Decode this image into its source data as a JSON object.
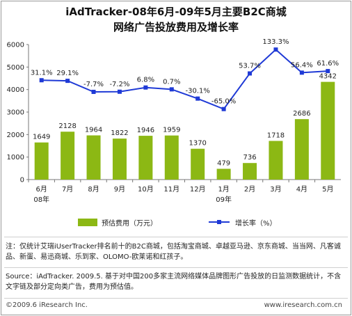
{
  "title_line1": "iAdTracker-08年6月-09年5月主要B2C商城",
  "title_line2": "网络广告投放费用及增长率",
  "note1": "注：仅统计艾瑞iUserTracker排名前十的B2C商城，包括淘宝商城、卓越亚马逊、京东商城、当当网、凡客诚品、新蛋、易迅商城、乐到家、OLOMO-欧莱诺和红孩子。",
  "note2": "Source：iAdTracker. 2009.5. 基于对中国200多家主流网络媒体品牌图形广告投放的日监测数据统计，不含文字链及部分定向类广告，费用为预估值。",
  "footer_left": "©2009.6 iResearch Inc.",
  "footer_right": "www.iresearch.com.cn",
  "chart_data": {
    "type": "bar",
    "categories": [
      "6月",
      "7月",
      "8月",
      "9月",
      "10月",
      "11月",
      "12月",
      "1月",
      "2月",
      "3月",
      "4月",
      "5月"
    ],
    "category_sublabels": [
      "08年",
      "",
      "",
      "",
      "",
      "",
      "",
      "09年",
      "",
      "",
      "",
      ""
    ],
    "series": [
      {
        "name": "预估费用（万元）",
        "kind": "bar",
        "color": "#8cb814",
        "values": [
          1649,
          2128,
          1964,
          1822,
          1946,
          1959,
          1370,
          479,
          736,
          1718,
          2686,
          4342
        ]
      },
      {
        "name": "增长率（%）",
        "kind": "line",
        "color": "#1f3ad6",
        "values": [
          31.1,
          29.1,
          -7.7,
          -7.2,
          6.8,
          0.7,
          -30.1,
          -65.0,
          53.7,
          133.3,
          56.4,
          61.6
        ]
      }
    ],
    "growth_labels": [
      "31.1%",
      "29.1%",
      "-7.7%",
      "-7.2%",
      "6.8%",
      "0.7%",
      "-30.1%",
      "-65.0%",
      "53.7%",
      "133.3%",
      "56.4%",
      "61.6%"
    ],
    "ylim": [
      0,
      6000
    ],
    "yticks": [
      "0",
      "1000",
      "2000",
      "3000",
      "4000",
      "5000",
      "6000"
    ],
    "line_ylim": [
      -300,
      150
    ],
    "grid": false,
    "legend_position": "bottom"
  }
}
